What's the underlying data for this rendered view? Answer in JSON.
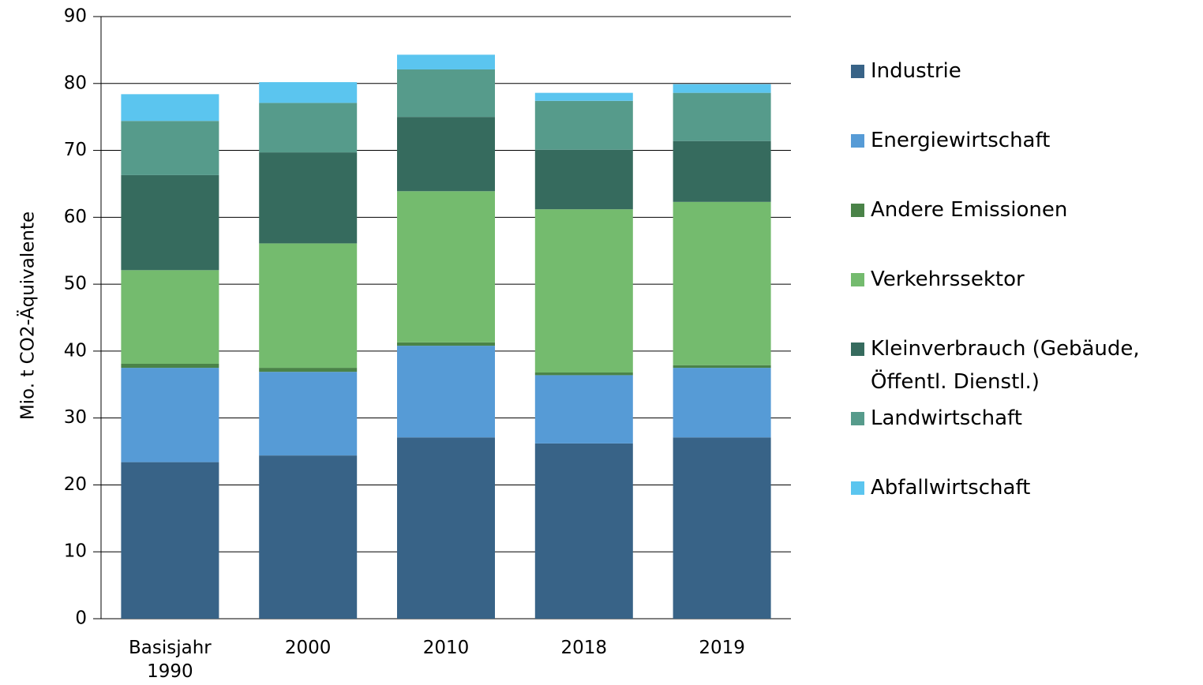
{
  "chart_data": {
    "type": "stacked_bar",
    "y_label": "Mio. t CO2-Äquivalente",
    "categories": [
      "Basisjahr 1990",
      "2000",
      "2010",
      "2018",
      "2019"
    ],
    "series": [
      {
        "name": "Industrie",
        "color": "#386387",
        "values": [
          23.4,
          24.4,
          27.1,
          26.2,
          27.1
        ]
      },
      {
        "name": "Energiewirtschaft",
        "color": "#569bd6",
        "values": [
          14.1,
          12.5,
          13.7,
          10.2,
          10.4
        ]
      },
      {
        "name": "Andere Emissionen",
        "color": "#4a8348",
        "values": [
          0.6,
          0.6,
          0.5,
          0.4,
          0.4
        ]
      },
      {
        "name": "Verkehrssektor",
        "color": "#74bb6e",
        "values": [
          14.0,
          18.6,
          22.6,
          24.4,
          24.4
        ]
      },
      {
        "name": "Kleinverbrauch (Gebäude, Öffentl. Dienstl.)",
        "color": "#366b5e",
        "values": [
          14.2,
          13.6,
          11.1,
          8.9,
          9.1
        ]
      },
      {
        "name": "Landwirtschaft",
        "color": "#569b8b",
        "values": [
          8.1,
          7.4,
          7.1,
          7.3,
          7.2
        ]
      },
      {
        "name": "Abfallwirtschaft",
        "color": "#5bc5ef",
        "values": [
          4.0,
          3.1,
          2.2,
          1.2,
          1.3
        ]
      }
    ],
    "ylim": [
      0,
      90
    ],
    "yticks": [
      0,
      10,
      20,
      30,
      40,
      50,
      60,
      70,
      80,
      90
    ],
    "grid": true,
    "legend": "right"
  }
}
